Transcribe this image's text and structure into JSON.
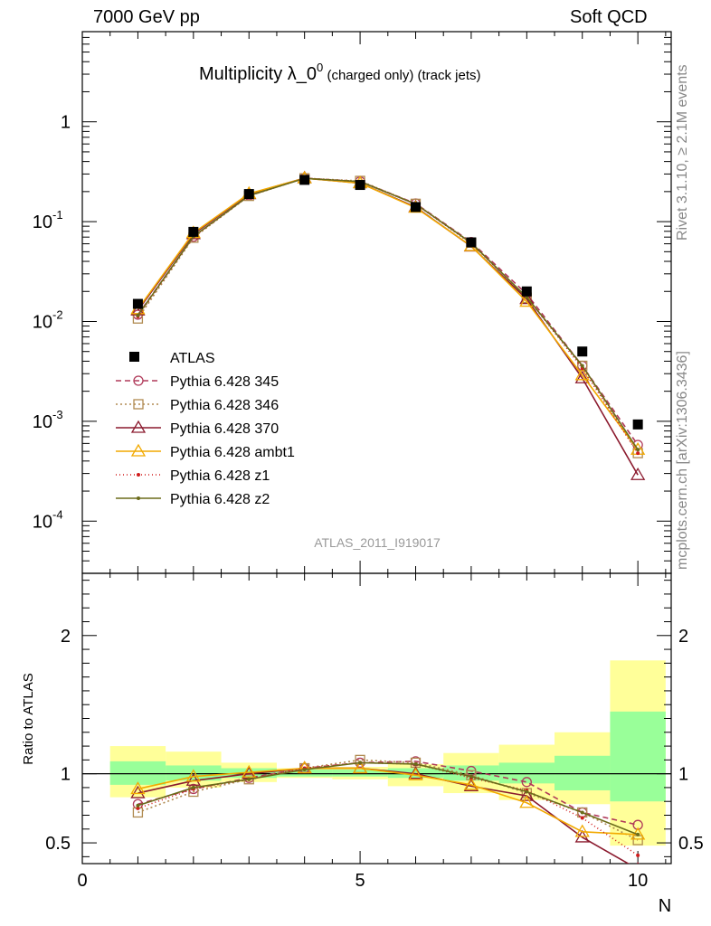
{
  "header": {
    "left": "7000 GeV pp",
    "right": "Soft QCD"
  },
  "side_labels": {
    "rivet": "Rivet 3.1.10, ≥ 2.1M events",
    "mcplots": "mcplots.cern.ch [arXiv:1306.3436]"
  },
  "chart_data": [
    {
      "type": "line",
      "title": "Multiplicity λ_0^0 (charged only) (track jets)",
      "title_parts": {
        "main": "Multiplicity λ_0",
        "sup": "0",
        "small": " (charged only) (track jets)"
      },
      "watermark": "ATLAS_2011_I919017",
      "yscale": "log",
      "ylim": [
        3e-05,
        8
      ],
      "xlim": [
        0,
        10.6
      ],
      "ytick_labels": [
        "10^-4",
        "10^-3",
        "10^-2",
        "10^-1",
        "1"
      ],
      "x": [
        1,
        2,
        3,
        4,
        5,
        6,
        7,
        8,
        9,
        10
      ],
      "data": {
        "name": "ATLAS",
        "values": [
          0.015,
          0.079,
          0.189,
          0.262,
          0.233,
          0.14,
          0.062,
          0.02,
          0.005,
          0.00093
        ]
      },
      "series": [
        {
          "name": "Pythia 6.428 345",
          "color": "#b03a5a",
          "dash": "6,4",
          "marker": "circle",
          "values": [
            0.0117,
            0.0705,
            0.183,
            0.272,
            0.253,
            0.152,
            0.0625,
            0.0188,
            0.0036,
            0.00058
          ]
        },
        {
          "name": "Pythia 6.428 346",
          "color": "#b08a50",
          "dash": "2,3",
          "marker": "square",
          "values": [
            0.0107,
            0.069,
            0.181,
            0.272,
            0.256,
            0.151,
            0.0615,
            0.0172,
            0.0036,
            0.00048
          ]
        },
        {
          "name": "Pythia 6.428 370",
          "color": "#8b1a2e",
          "dash": "",
          "marker": "triangle",
          "values": [
            0.0129,
            0.075,
            0.189,
            0.273,
            0.243,
            0.14,
            0.0565,
            0.0168,
            0.0027,
            0.00029
          ]
        },
        {
          "name": "Pythia 6.428 ambt1",
          "color": "#f2a900",
          "dash": "",
          "marker": "triangle",
          "values": [
            0.0133,
            0.077,
            0.191,
            0.272,
            0.243,
            0.138,
            0.057,
            0.0158,
            0.0029,
            0.00052
          ]
        },
        {
          "name": "Pythia 6.428 z1",
          "color": "#d01c1c",
          "dash": "1,3",
          "marker": "dot",
          "values": [
            0.0112,
            0.0705,
            0.181,
            0.272,
            0.251,
            0.15,
            0.06,
            0.0176,
            0.0034,
            0.00048
          ]
        },
        {
          "name": "Pythia 6.428 z2",
          "color": "#6b6b1a",
          "dash": "",
          "marker": "dot",
          "values": [
            0.0115,
            0.0712,
            0.182,
            0.271,
            0.252,
            0.15,
            0.0612,
            0.0175,
            0.0036,
            0.00052
          ]
        }
      ],
      "legend_position": "left"
    },
    {
      "type": "line",
      "ylabel": "Ratio to ATLAS",
      "xlabel": "N",
      "ylim": [
        0.35,
        2.45
      ],
      "xlim": [
        0,
        10.6
      ],
      "ytick_labels": [
        "0.5",
        "1",
        "2"
      ],
      "xtick_labels": [
        "0",
        "5",
        "10"
      ],
      "band_inner": [
        [
          0.5,
          1.5,
          0.92,
          1.09
        ],
        [
          1.5,
          2.5,
          0.95,
          1.06
        ],
        [
          2.5,
          3.5,
          0.97,
          1.04
        ],
        [
          3.5,
          4.5,
          0.98,
          1.03
        ],
        [
          4.5,
          5.5,
          0.98,
          1.03
        ],
        [
          5.5,
          6.5,
          0.97,
          1.04
        ],
        [
          6.5,
          7.5,
          0.95,
          1.06
        ],
        [
          7.5,
          8.5,
          0.93,
          1.08
        ],
        [
          8.5,
          9.5,
          0.88,
          1.13
        ],
        [
          9.5,
          10.5,
          0.8,
          1.45
        ]
      ],
      "band_outer": [
        [
          0.5,
          1.5,
          0.83,
          1.2
        ],
        [
          1.5,
          2.5,
          0.9,
          1.16
        ],
        [
          2.5,
          3.5,
          0.94,
          1.08
        ],
        [
          3.5,
          4.5,
          0.97,
          1.04
        ],
        [
          4.5,
          5.5,
          0.96,
          1.05
        ],
        [
          5.5,
          6.5,
          0.91,
          1.07
        ],
        [
          6.5,
          7.5,
          0.86,
          1.15
        ],
        [
          7.5,
          8.5,
          0.81,
          1.21
        ],
        [
          8.5,
          9.5,
          0.78,
          1.3
        ],
        [
          9.5,
          10.5,
          0.48,
          1.82
        ]
      ],
      "series": [
        {
          "name": "Pythia 6.428 345",
          "values": [
            0.78,
            0.89,
            0.97,
            1.04,
            1.08,
            1.09,
            1.02,
            0.94,
            0.72,
            0.63
          ]
        },
        {
          "name": "Pythia 6.428 346",
          "values": [
            0.72,
            0.87,
            0.96,
            1.04,
            1.1,
            1.08,
            0.99,
            0.86,
            0.72,
            0.52
          ]
        },
        {
          "name": "Pythia 6.428 370",
          "values": [
            0.86,
            0.95,
            1.0,
            1.04,
            1.04,
            1.0,
            0.91,
            0.84,
            0.54,
            0.31
          ]
        },
        {
          "name": "Pythia 6.428 ambt1",
          "values": [
            0.89,
            0.98,
            1.01,
            1.04,
            1.04,
            0.99,
            0.92,
            0.79,
            0.58,
            0.56
          ]
        },
        {
          "name": "Pythia 6.428 z1",
          "values": [
            0.75,
            0.89,
            0.96,
            1.04,
            1.08,
            1.07,
            0.97,
            0.88,
            0.68,
            0.41
          ]
        },
        {
          "name": "Pythia 6.428 z2",
          "values": [
            0.77,
            0.9,
            0.96,
            1.03,
            1.08,
            1.07,
            0.98,
            0.87,
            0.72,
            0.56
          ]
        }
      ]
    }
  ]
}
